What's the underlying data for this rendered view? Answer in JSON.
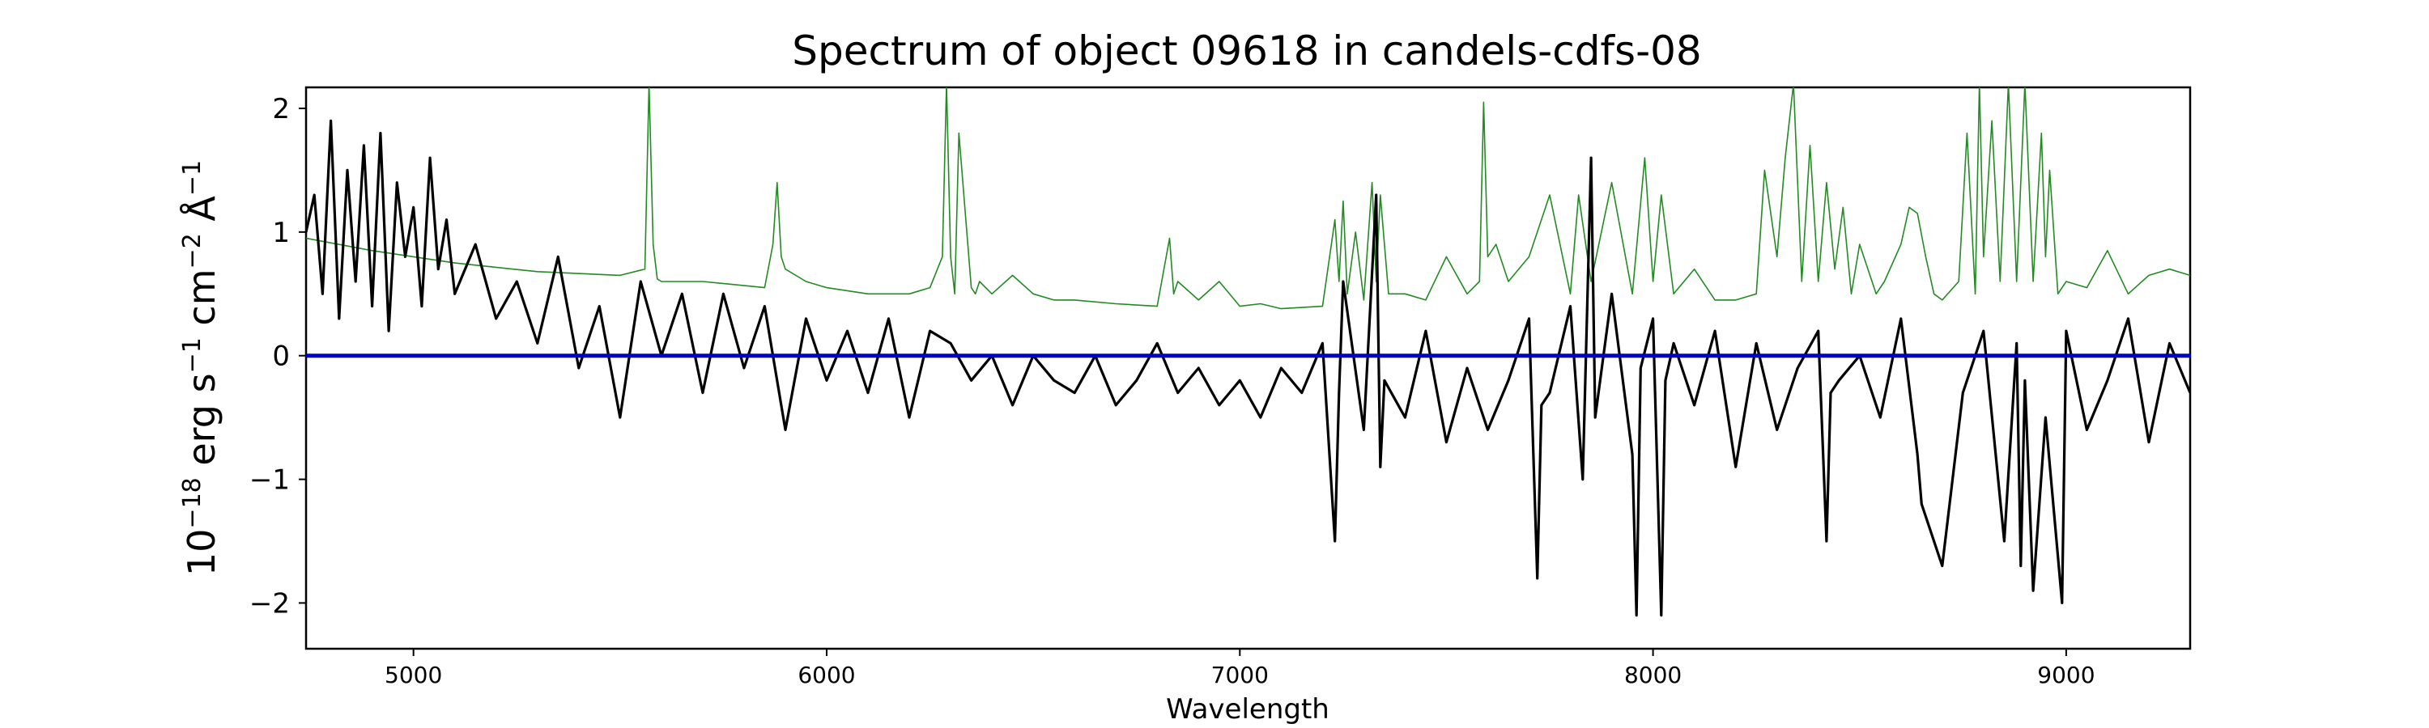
{
  "chart_data": {
    "type": "line",
    "title": "Spectrum of object 09618 in candels-cdfs-08",
    "xlabel": "Wavelength",
    "ylabel": "10^{-18} erg s^{-1} cm^{-2} Å^{-1}",
    "ylabel_parts": {
      "base": "10",
      "exp1": "−18",
      "t1": " erg s",
      "exp2": "−1",
      "t2": " cm",
      "exp3": "−2",
      "t3": " Å",
      "exp4": "−1"
    },
    "xlim": [
      4740,
      9300
    ],
    "ylim": [
      -2.37,
      2.17
    ],
    "x_ticks": [
      5000,
      6000,
      7000,
      8000,
      9000
    ],
    "x_tick_labels": [
      "5000",
      "6000",
      "7000",
      "8000",
      "9000"
    ],
    "y_ticks": [
      -2,
      -1,
      0,
      1,
      2
    ],
    "y_tick_labels": [
      "−2",
      "−1",
      "0",
      "1",
      "2"
    ],
    "grid": false,
    "legend": "none",
    "zero_line": {
      "y": 0,
      "color": "#0000cc"
    },
    "series": [
      {
        "role": "flux",
        "color": "#000000",
        "x": [
          4740,
          4760,
          4780,
          4800,
          4820,
          4840,
          4860,
          4880,
          4900,
          4920,
          4940,
          4960,
          4980,
          5000,
          5020,
          5040,
          5060,
          5080,
          5100,
          5150,
          5200,
          5250,
          5300,
          5350,
          5400,
          5450,
          5500,
          5550,
          5600,
          5650,
          5700,
          5750,
          5800,
          5850,
          5900,
          5950,
          6000,
          6050,
          6100,
          6150,
          6200,
          6250,
          6300,
          6350,
          6400,
          6450,
          6500,
          6550,
          6600,
          6650,
          6700,
          6750,
          6800,
          6850,
          6900,
          6950,
          7000,
          7050,
          7100,
          7150,
          7200,
          7230,
          7240,
          7250,
          7300,
          7330,
          7340,
          7350,
          7400,
          7450,
          7500,
          7550,
          7600,
          7650,
          7700,
          7720,
          7730,
          7750,
          7800,
          7830,
          7850,
          7860,
          7900,
          7950,
          7960,
          7970,
          8000,
          8020,
          8030,
          8050,
          8100,
          8150,
          8200,
          8250,
          8300,
          8350,
          8400,
          8420,
          8430,
          8450,
          8500,
          8550,
          8600,
          8640,
          8650,
          8700,
          8750,
          8800,
          8850,
          8880,
          8890,
          8900,
          8920,
          8950,
          8990,
          9000,
          9050,
          9100,
          9150,
          9200,
          9250,
          9300
        ],
        "y": [
          1.0,
          1.3,
          0.5,
          1.9,
          0.3,
          1.5,
          0.6,
          1.7,
          0.4,
          1.8,
          0.2,
          1.4,
          0.8,
          1.2,
          0.4,
          1.6,
          0.7,
          1.1,
          0.5,
          0.9,
          0.3,
          0.6,
          0.1,
          0.8,
          -0.1,
          0.4,
          -0.5,
          0.6,
          0.0,
          0.5,
          -0.3,
          0.5,
          -0.1,
          0.4,
          -0.6,
          0.3,
          -0.2,
          0.2,
          -0.3,
          0.3,
          -0.5,
          0.2,
          0.1,
          -0.2,
          0.0,
          -0.4,
          0.0,
          -0.2,
          -0.3,
          0.0,
          -0.4,
          -0.2,
          0.1,
          -0.3,
          -0.1,
          -0.4,
          -0.2,
          -0.5,
          -0.1,
          -0.3,
          0.1,
          -1.5,
          -0.3,
          0.6,
          -0.6,
          1.3,
          -0.9,
          -0.2,
          -0.5,
          0.2,
          -0.7,
          -0.1,
          -0.6,
          -0.2,
          0.3,
          -1.8,
          -0.4,
          -0.3,
          0.4,
          -1.0,
          1.6,
          -0.5,
          0.5,
          -0.8,
          -2.1,
          -0.1,
          0.3,
          -2.1,
          -0.2,
          0.1,
          -0.4,
          0.2,
          -0.9,
          0.1,
          -0.6,
          -0.1,
          0.2,
          -1.5,
          -0.3,
          -0.2,
          0.0,
          -0.5,
          0.3,
          -0.8,
          -1.2,
          -1.7,
          -0.3,
          0.2,
          -1.5,
          0.1,
          -1.7,
          -0.2,
          -1.9,
          -0.5,
          -2.0,
          0.2,
          -0.6,
          -0.2,
          0.3,
          -0.7,
          0.1,
          -0.3
        ]
      },
      {
        "role": "sky",
        "color": "#228b22",
        "x": [
          4740,
          4900,
          5100,
          5300,
          5500,
          5560,
          5570,
          5580,
          5590,
          5600,
          5700,
          5850,
          5870,
          5880,
          5890,
          5900,
          5950,
          6000,
          6100,
          6200,
          6250,
          6280,
          6290,
          6300,
          6310,
          6320,
          6350,
          6360,
          6370,
          6400,
          6450,
          6500,
          6550,
          6600,
          6700,
          6800,
          6830,
          6840,
          6850,
          6900,
          6950,
          7000,
          7050,
          7100,
          7200,
          7230,
          7240,
          7250,
          7260,
          7280,
          7300,
          7320,
          7330,
          7340,
          7360,
          7400,
          7450,
          7500,
          7550,
          7580,
          7590,
          7600,
          7620,
          7650,
          7700,
          7750,
          7800,
          7820,
          7850,
          7900,
          7950,
          7980,
          8000,
          8020,
          8050,
          8100,
          8150,
          8200,
          8250,
          8270,
          8300,
          8320,
          8340,
          8360,
          8380,
          8400,
          8420,
          8440,
          8460,
          8480,
          8500,
          8540,
          8560,
          8600,
          8620,
          8640,
          8660,
          8680,
          8700,
          8740,
          8760,
          8780,
          8790,
          8800,
          8820,
          8840,
          8860,
          8880,
          8900,
          8920,
          8940,
          8950,
          8960,
          8980,
          9000,
          9050,
          9100,
          9150,
          9200,
          9250,
          9300
        ],
        "y": [
          0.95,
          0.85,
          0.75,
          0.68,
          0.65,
          0.7,
          2.2,
          0.9,
          0.62,
          0.6,
          0.6,
          0.55,
          0.9,
          1.4,
          0.8,
          0.7,
          0.6,
          0.55,
          0.5,
          0.5,
          0.55,
          0.8,
          2.2,
          0.8,
          0.5,
          1.8,
          0.55,
          0.5,
          0.6,
          0.5,
          0.65,
          0.5,
          0.45,
          0.45,
          0.42,
          0.4,
          0.95,
          0.5,
          0.6,
          0.45,
          0.6,
          0.4,
          0.42,
          0.38,
          0.4,
          1.1,
          0.6,
          1.25,
          0.5,
          1.0,
          0.45,
          1.4,
          0.6,
          1.3,
          0.5,
          0.5,
          0.45,
          0.8,
          0.5,
          0.6,
          2.05,
          0.8,
          0.9,
          0.6,
          0.8,
          1.3,
          0.5,
          1.3,
          0.6,
          1.4,
          0.5,
          1.6,
          0.6,
          1.3,
          0.5,
          0.7,
          0.45,
          0.45,
          0.5,
          1.5,
          0.8,
          1.6,
          2.2,
          0.6,
          1.7,
          0.6,
          1.4,
          0.7,
          1.2,
          0.5,
          0.9,
          0.5,
          0.6,
          0.9,
          1.2,
          1.15,
          0.8,
          0.5,
          0.45,
          0.6,
          1.8,
          0.5,
          2.2,
          0.8,
          1.9,
          0.6,
          2.2,
          0.6,
          2.2,
          0.6,
          1.8,
          0.8,
          1.5,
          0.5,
          0.6,
          0.55,
          0.85,
          0.5,
          0.65,
          0.7,
          0.65
        ]
      }
    ]
  }
}
